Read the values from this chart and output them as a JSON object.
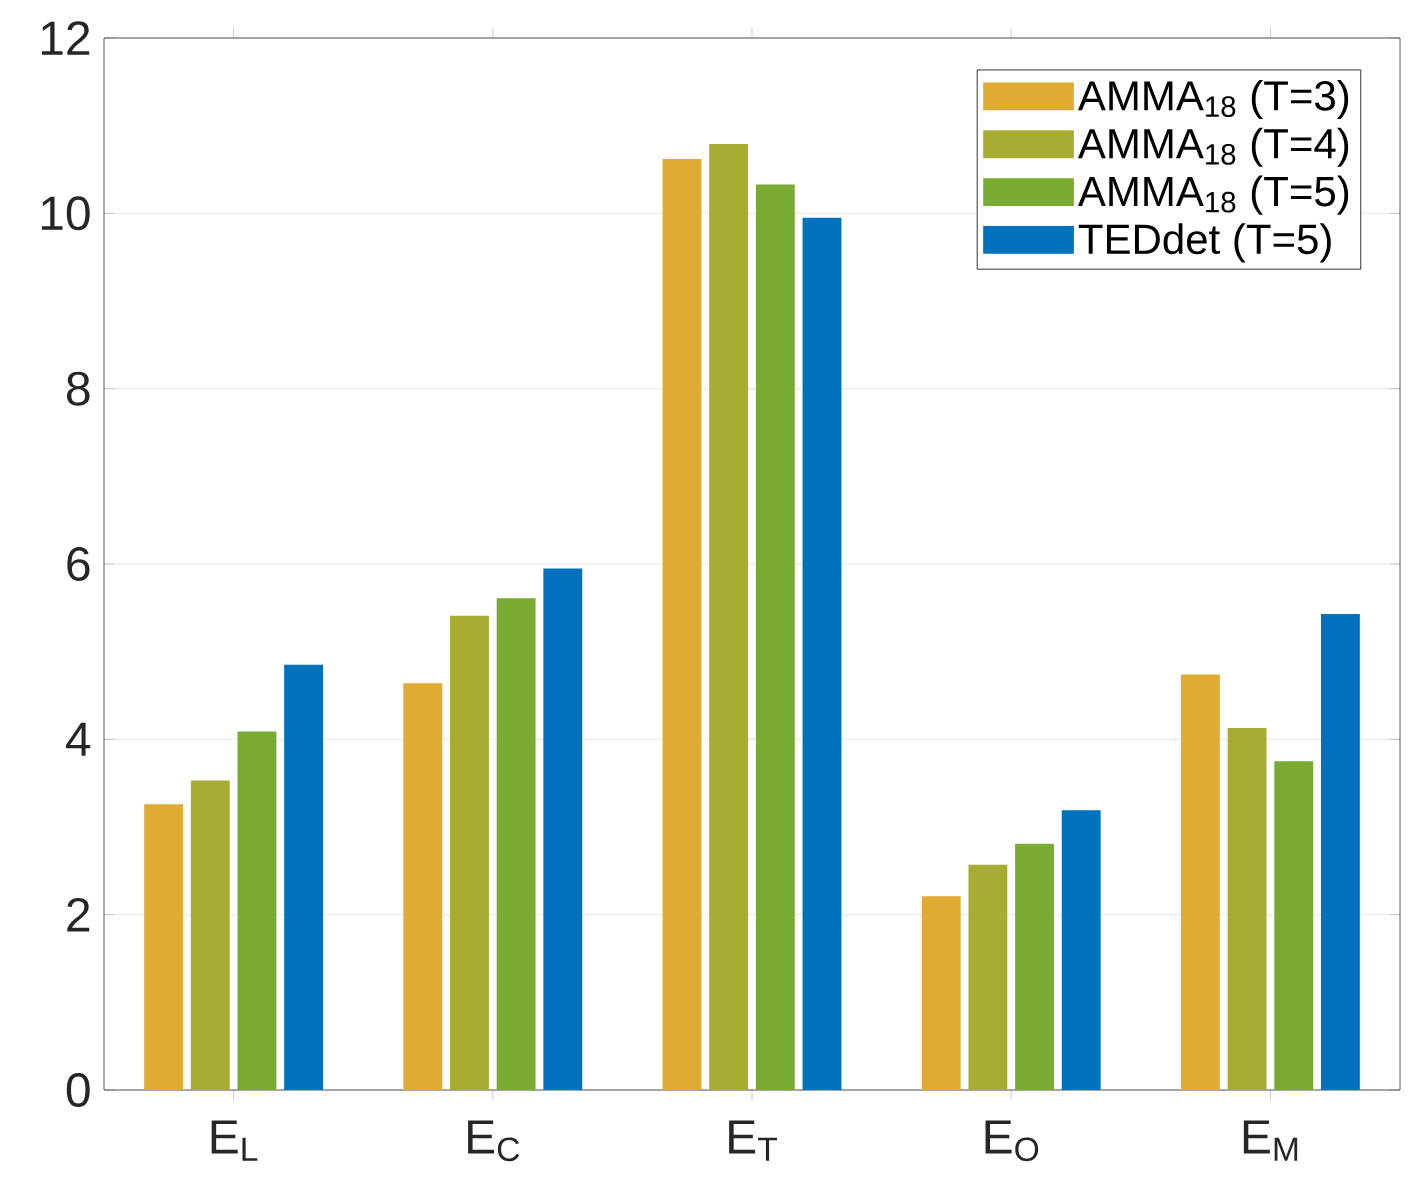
{
  "chart_data": {
    "type": "bar",
    "categories": [
      "E$_{L}$",
      "E$_{C}$",
      "E$_{T}$",
      "E$_{O}$",
      "E$_{M}$"
    ],
    "series": [
      {
        "name": "AMMA$_{18}$ (T=3)",
        "color": "#dfab32",
        "values": [
          3.26,
          4.64,
          10.62,
          2.21,
          4.74
        ]
      },
      {
        "name": "AMMA$_{18}$ (T=4)",
        "color": "#a9ac32",
        "values": [
          3.53,
          5.41,
          10.79,
          2.57,
          4.13
        ]
      },
      {
        "name": "AMMA$_{18}$ (T=5)",
        "color": "#79ab32",
        "values": [
          4.09,
          5.61,
          10.33,
          2.81,
          3.75
        ]
      },
      {
        "name": "TEDdet (T=5)",
        "color": "#0072bd",
        "values": [
          4.85,
          5.95,
          9.95,
          3.19,
          5.43
        ]
      }
    ],
    "ylim": [
      0,
      12
    ],
    "yticks": [
      0,
      2,
      4,
      6,
      8,
      10,
      12
    ],
    "grid": "y",
    "legend": "top right"
  }
}
